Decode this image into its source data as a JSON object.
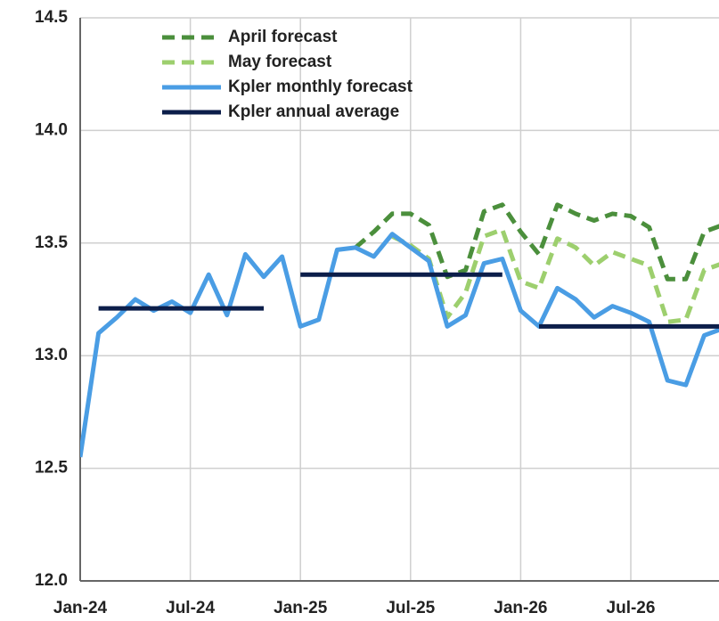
{
  "chart_data": {
    "type": "line",
    "categories": [
      "Jan-24",
      null,
      null,
      null,
      null,
      null,
      "Jul-24",
      null,
      null,
      null,
      null,
      null,
      "Jan-25",
      null,
      null,
      null,
      null,
      null,
      "Jul-25",
      null,
      null,
      null,
      null,
      null,
      "Jan-26",
      null,
      null,
      null,
      null,
      null,
      "Jul-26",
      null,
      null,
      null,
      null,
      null
    ],
    "series": [
      {
        "name": "April forecast",
        "color": "#4b8f3c",
        "dash": true,
        "values": [
          null,
          null,
          null,
          null,
          null,
          null,
          null,
          null,
          null,
          null,
          null,
          null,
          null,
          null,
          null,
          13.48,
          13.55,
          13.63,
          13.63,
          13.58,
          13.35,
          13.38,
          13.64,
          13.67,
          13.55,
          13.45,
          13.67,
          13.63,
          13.6,
          13.63,
          13.62,
          13.57,
          13.34,
          13.34,
          13.55,
          13.58
        ]
      },
      {
        "name": "May forecast",
        "color": "#9dcf6e",
        "dash": true,
        "values": [
          null,
          null,
          null,
          null,
          null,
          null,
          null,
          null,
          null,
          null,
          null,
          null,
          null,
          null,
          null,
          null,
          null,
          13.53,
          13.49,
          13.43,
          13.17,
          13.28,
          13.53,
          13.56,
          13.33,
          13.3,
          13.52,
          13.48,
          13.4,
          13.46,
          13.43,
          13.4,
          13.15,
          13.16,
          13.38,
          13.41
        ]
      },
      {
        "name": "Kpler monthly forecast",
        "color": "#4a9de4",
        "dash": false,
        "values": [
          12.55,
          13.1,
          13.17,
          13.25,
          13.2,
          13.24,
          13.19,
          13.36,
          13.18,
          13.45,
          13.35,
          13.44,
          13.13,
          13.16,
          13.47,
          13.48,
          13.44,
          13.54,
          13.48,
          13.42,
          13.13,
          13.18,
          13.41,
          13.43,
          13.2,
          13.13,
          13.3,
          13.25,
          13.17,
          13.22,
          13.19,
          13.15,
          12.89,
          12.87,
          13.09,
          13.12
        ]
      },
      {
        "name": "Kpler annual average",
        "color": "#0c1e4a",
        "dash": false,
        "values": [
          null,
          13.21,
          13.21,
          13.21,
          13.21,
          13.21,
          13.21,
          13.21,
          13.21,
          13.21,
          13.21,
          null,
          13.36,
          13.36,
          13.36,
          13.36,
          13.36,
          13.36,
          13.36,
          13.36,
          13.36,
          13.36,
          13.36,
          13.36,
          null,
          13.13,
          13.13,
          13.13,
          13.13,
          13.13,
          13.13,
          13.13,
          13.13,
          13.13,
          13.13,
          13.13
        ]
      }
    ],
    "ylim": [
      12,
      14.5
    ],
    "yticks": [
      {
        "value": 12,
        "label": "12.0"
      },
      12.5,
      {
        "value": 13,
        "label": "13.0"
      },
      13.5,
      {
        "value": 14,
        "label": "14.0"
      },
      14.5
    ],
    "grid": true,
    "legend": "top-left"
  }
}
